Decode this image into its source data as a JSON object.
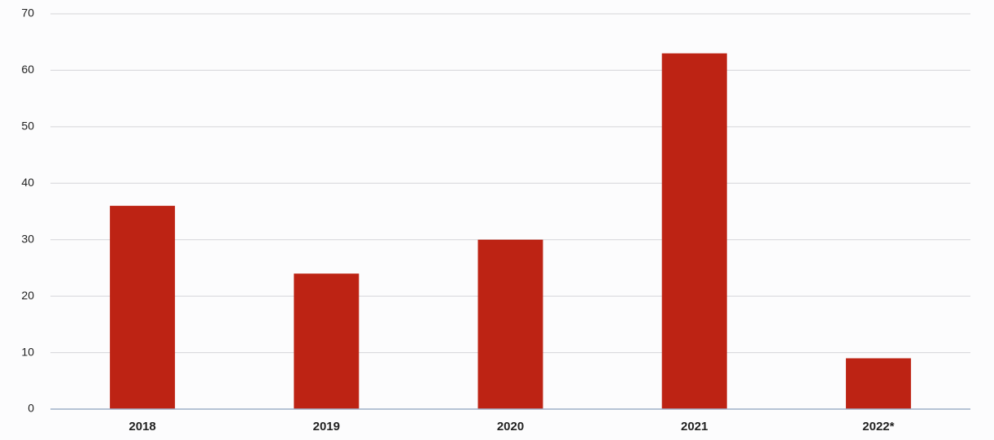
{
  "chart_data": {
    "type": "bar",
    "categories": [
      "2018",
      "2019",
      "2020",
      "2021",
      "2022*"
    ],
    "values": [
      36,
      24,
      30,
      63,
      9
    ],
    "color": "#bd2314",
    "ylim": [
      0,
      70
    ],
    "yticks": [
      0,
      10,
      20,
      30,
      40,
      50,
      60,
      70
    ],
    "grid": true
  }
}
